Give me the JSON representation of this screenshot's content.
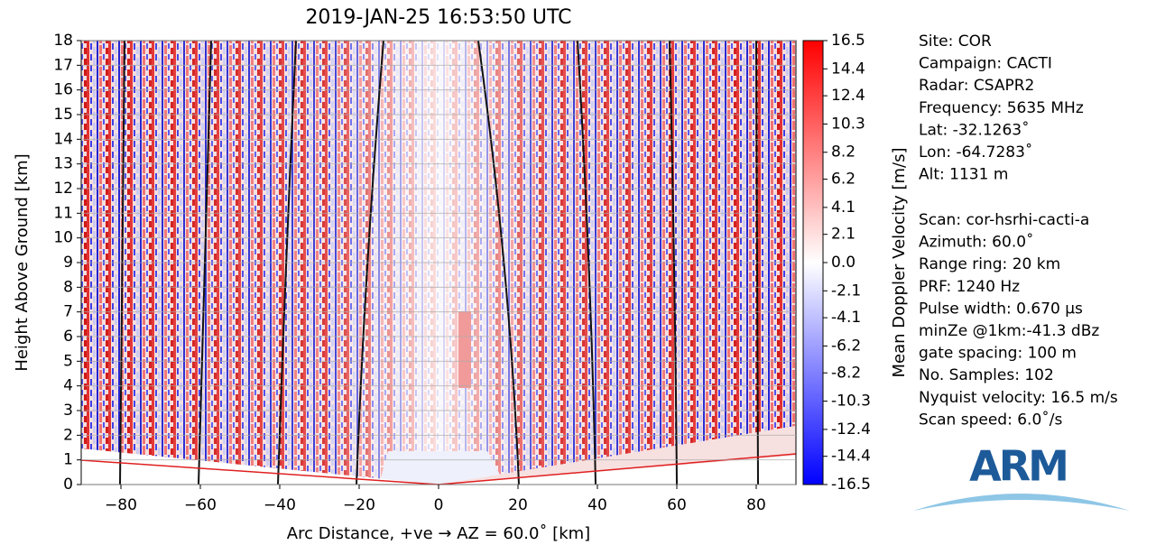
{
  "chart_data": {
    "type": "radar-rhi",
    "title": "2019-JAN-25 16:53:50 UTC",
    "x_label": "Arc Distance, +ve → AZ = 60.0˚ [km]",
    "y_label": "Height Above Ground [km]",
    "xlim": [
      -90,
      90
    ],
    "xticks": [
      {
        "value": -80,
        "label": "−80"
      },
      {
        "value": -60,
        "label": "−60"
      },
      {
        "value": -40,
        "label": "−40"
      },
      {
        "value": -20,
        "label": "−20"
      },
      0,
      20,
      40,
      60,
      80
    ],
    "ylim": [
      0,
      18
    ],
    "yticks": [
      0,
      1,
      2,
      3,
      4,
      5,
      6,
      7,
      8,
      9,
      10,
      11,
      12,
      13,
      14,
      15,
      16,
      17,
      18
    ],
    "grid": true,
    "colorbar": {
      "label": "Mean Doppler Velocity [m/s]",
      "lim": [
        -16.5,
        16.5
      ],
      "colormap": [
        "#0000ff",
        "#ffffff",
        "#ff0000"
      ],
      "ticks": [
        16.5,
        14.4,
        12.4,
        10.3,
        8.2,
        6.2,
        4.1,
        2.1,
        {
          "value": 0,
          "label": "0.0"
        },
        -2.1,
        -4.1,
        -6.2,
        -8.2,
        -10.3,
        -12.4,
        -14.4,
        -16.5
      ]
    },
    "site_info": [
      "Site: COR",
      "Campaign: CACTI",
      "Radar: CSAPR2",
      "Frequency: 5635 MHz",
      "Lat: -32.1263˚",
      "Lon: -64.7283˚",
      "Alt: 1131 m"
    ],
    "scan_info": [
      "Scan: cor-hsrhi-cacti-a",
      "Azimuth: 60.0˚",
      "Range ring: 20 km",
      "PRF: 1240 Hz",
      "Pulse width: 0.670 μs",
      "minZe @1km:-41.3 dBz",
      "gate spacing: 100 m",
      "No. Samples: 102",
      "Nyquist velocity: 16.5 m/s",
      "Scan speed: 6.0˚/s"
    ],
    "logo": "ARM"
  }
}
